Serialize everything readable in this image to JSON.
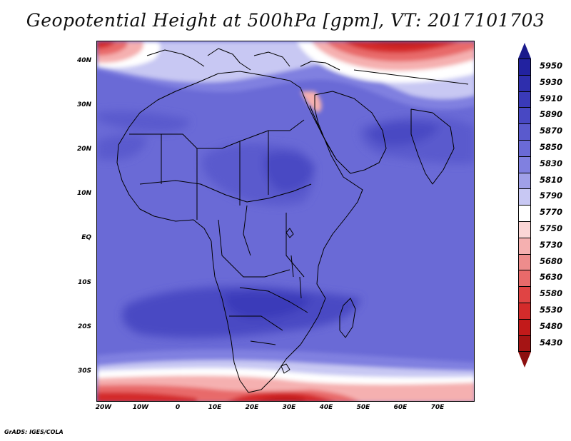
{
  "title": "Geopotential Height at 500hPa [gpm], VT: 2017101703",
  "credit": "GrADS: IGES/COLA",
  "latitude_labels": [
    "40N",
    "30N",
    "20N",
    "10N",
    "EQ",
    "10S",
    "20S",
    "30S"
  ],
  "longitude_labels": [
    "20W",
    "10W",
    "0",
    "10E",
    "20E",
    "30E",
    "40E",
    "50E",
    "60E",
    "70E"
  ],
  "colorbar": {
    "levels": [
      "5950",
      "5930",
      "5910",
      "5890",
      "5870",
      "5850",
      "5830",
      "5810",
      "5790",
      "5770",
      "5750",
      "5730",
      "5680",
      "5630",
      "5580",
      "5530",
      "5480",
      "5430"
    ],
    "colors": [
      "#2222a0",
      "#2e2ead",
      "#3a3ab9",
      "#4848c3",
      "#5a5acd",
      "#6a6ad6",
      "#8080e0",
      "#a0a0e8",
      "#c8c8f3",
      "#ffffff",
      "#fbd6d6",
      "#f5b0b0",
      "#ee8c8c",
      "#e86a6a",
      "#e04444",
      "#d42b2b",
      "#c21a1a",
      "#a51414"
    ],
    "top_arrow_color": "#1a1a8c",
    "bottom_arrow_color": "#8c0f0f"
  }
}
